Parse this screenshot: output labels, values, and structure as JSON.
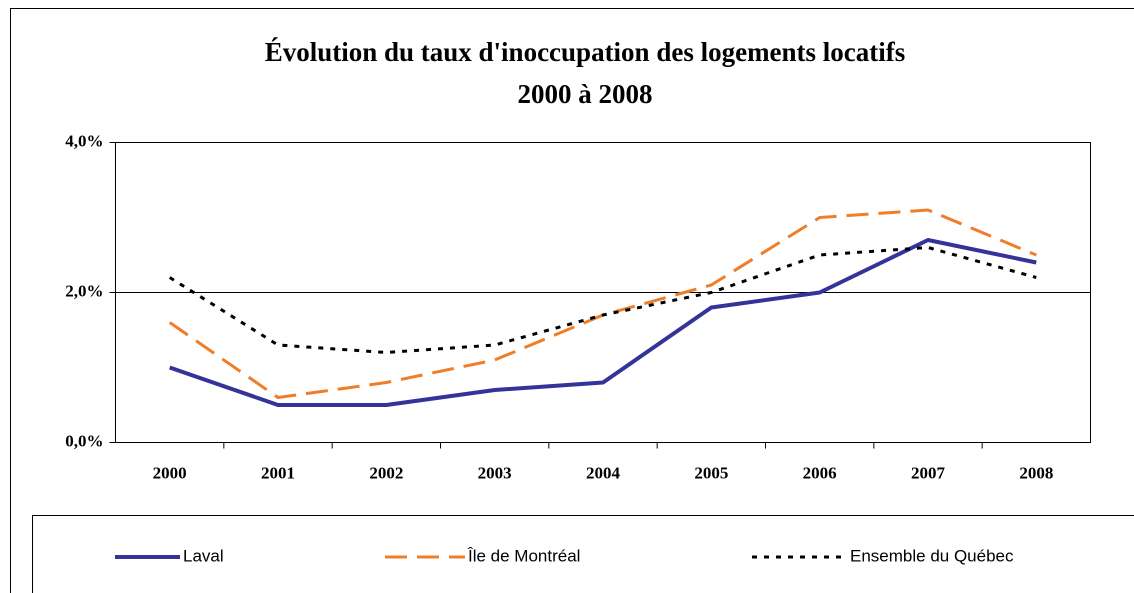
{
  "chart_data": {
    "type": "line",
    "title": [
      "Évolution du taux d'inoccupation des logements locatifs",
      "2000 à 2008"
    ],
    "categories": [
      "2000",
      "2001",
      "2002",
      "2003",
      "2004",
      "2005",
      "2006",
      "2007",
      "2008"
    ],
    "series": [
      {
        "name": "Laval",
        "color": "#333399",
        "dash": "solid",
        "values": [
          1.0,
          0.5,
          0.5,
          0.7,
          0.8,
          1.8,
          2.0,
          2.7,
          2.4
        ]
      },
      {
        "name": "Île de Montréal",
        "color": "#f07d28",
        "dash": "dashed",
        "values": [
          1.6,
          0.6,
          0.8,
          1.1,
          1.7,
          2.1,
          3.0,
          3.1,
          2.5
        ]
      },
      {
        "name": "Ensemble du Québec",
        "color": "#000000",
        "dash": "dotted",
        "values": [
          2.2,
          1.3,
          1.2,
          1.3,
          1.7,
          2.0,
          2.5,
          2.6,
          2.2
        ]
      }
    ],
    "ylim": [
      0,
      4
    ],
    "yticks": [
      {
        "value": 0,
        "label": "0,0%"
      },
      {
        "value": 2,
        "label": "2,0%"
      },
      {
        "value": 4,
        "label": "4,0%"
      }
    ],
    "grid": true,
    "legend": "bottom"
  }
}
